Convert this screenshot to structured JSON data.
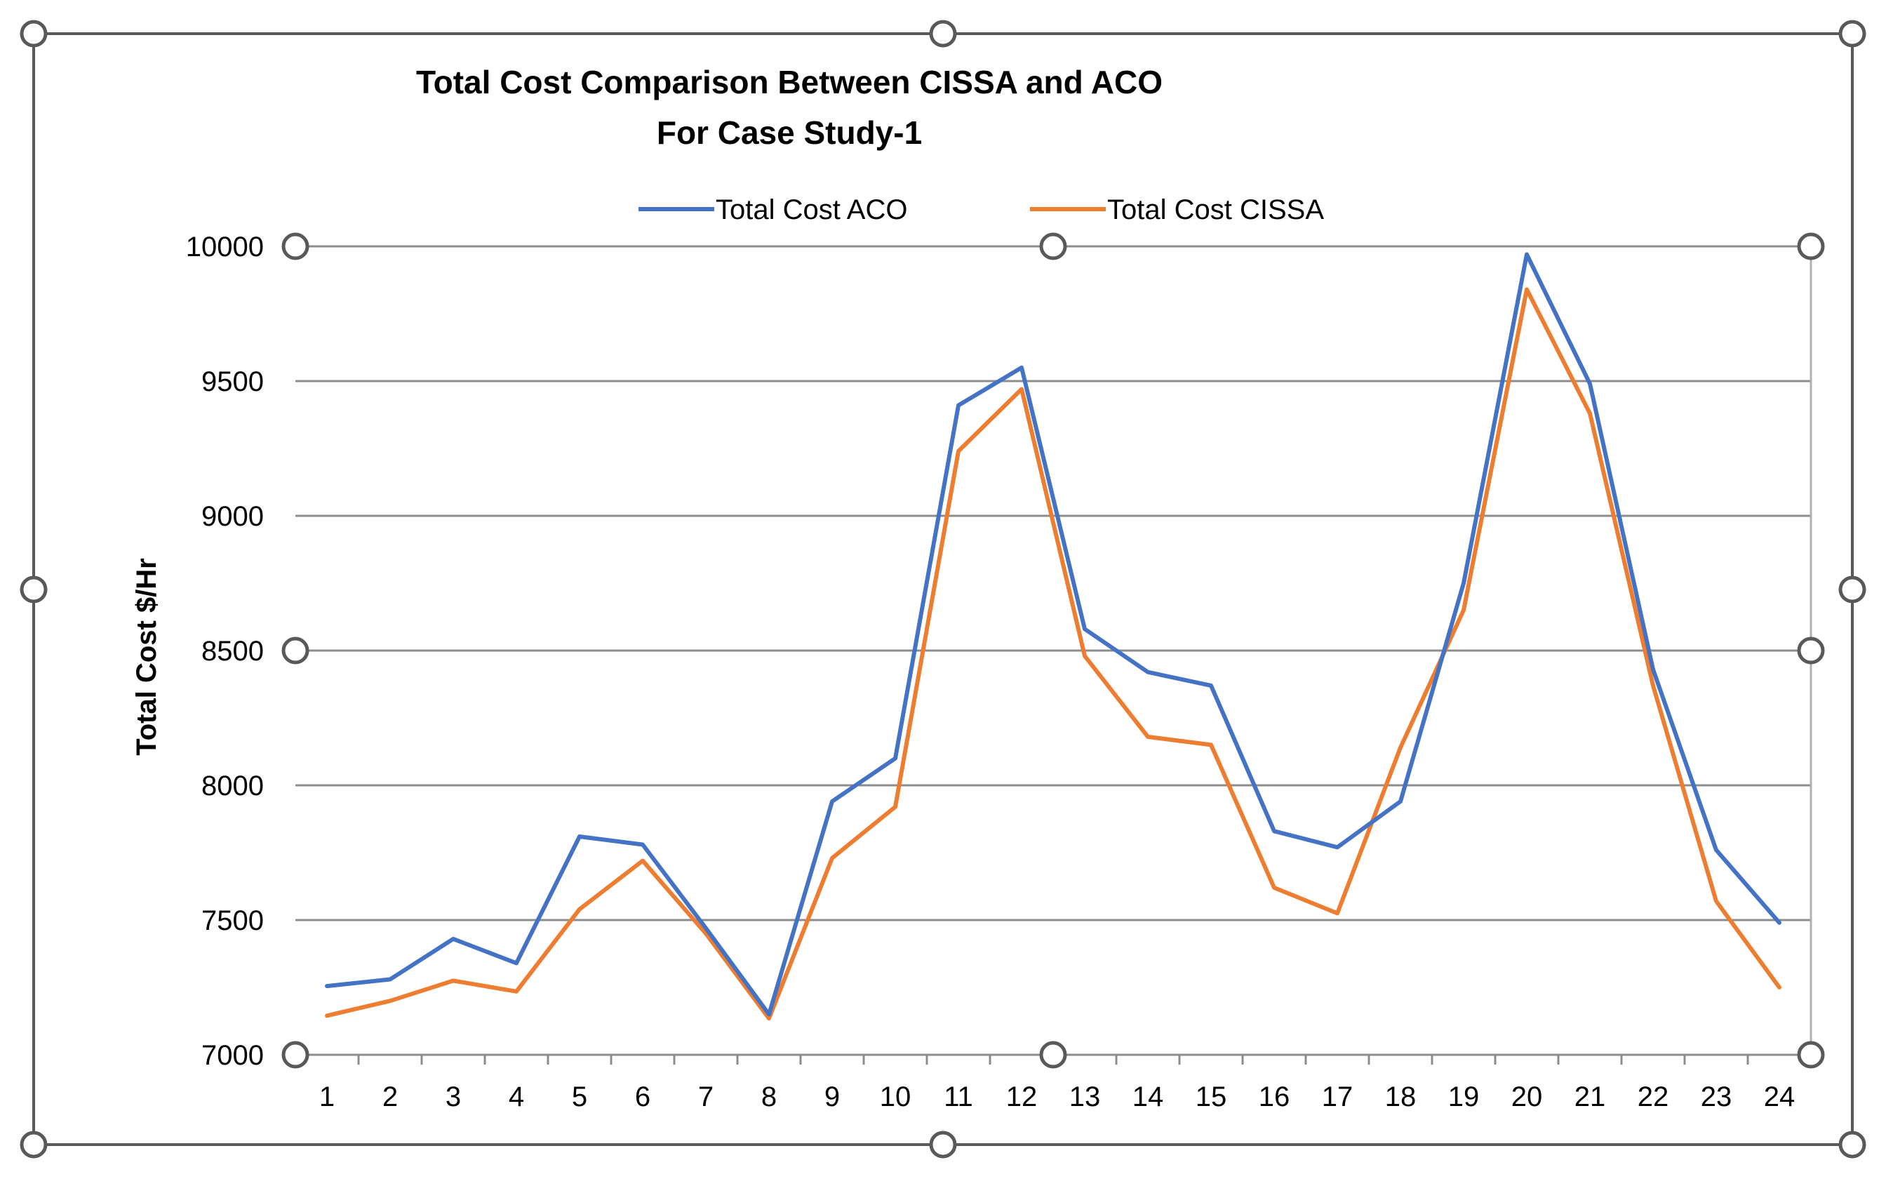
{
  "chart_data": {
    "type": "line",
    "title": "Total Cost Comparison Between CISSA and ACO",
    "subtitle": "For Case Study-1",
    "xlabel": "",
    "ylabel": "Total Cost  $/Hr",
    "ylim": [
      7000,
      10000
    ],
    "yticks": [
      "7000",
      "7500",
      "8000",
      "8500",
      "9000",
      "9500",
      "10000"
    ],
    "ytick_values": [
      7000,
      7500,
      8000,
      8500,
      9000,
      9500,
      10000
    ],
    "categories": [
      "1",
      "2",
      "3",
      "4",
      "5",
      "6",
      "7",
      "8",
      "9",
      "10",
      "11",
      "12",
      "13",
      "14",
      "15",
      "16",
      "17",
      "18",
      "19",
      "20",
      "21",
      "22",
      "23",
      "24"
    ],
    "grid": true,
    "legend_position": "top-center",
    "series": [
      {
        "name": "Total Cost ACO",
        "color": "#4472C4",
        "values": [
          7255,
          7280,
          7430,
          7340,
          7810,
          7780,
          7470,
          7150,
          7940,
          8100,
          9410,
          9550,
          8580,
          8420,
          8370,
          7830,
          7770,
          7940,
          8750,
          9970,
          9490,
          8430,
          7760,
          7490
        ]
      },
      {
        "name": "Total Cost CISSA",
        "color": "#ED7D31",
        "values": [
          7145,
          7200,
          7275,
          7235,
          7540,
          7720,
          7450,
          7135,
          7730,
          7920,
          9240,
          9470,
          8480,
          8180,
          8150,
          7620,
          7525,
          8140,
          8650,
          9840,
          9380,
          8370,
          7570,
          7250
        ]
      }
    ]
  }
}
